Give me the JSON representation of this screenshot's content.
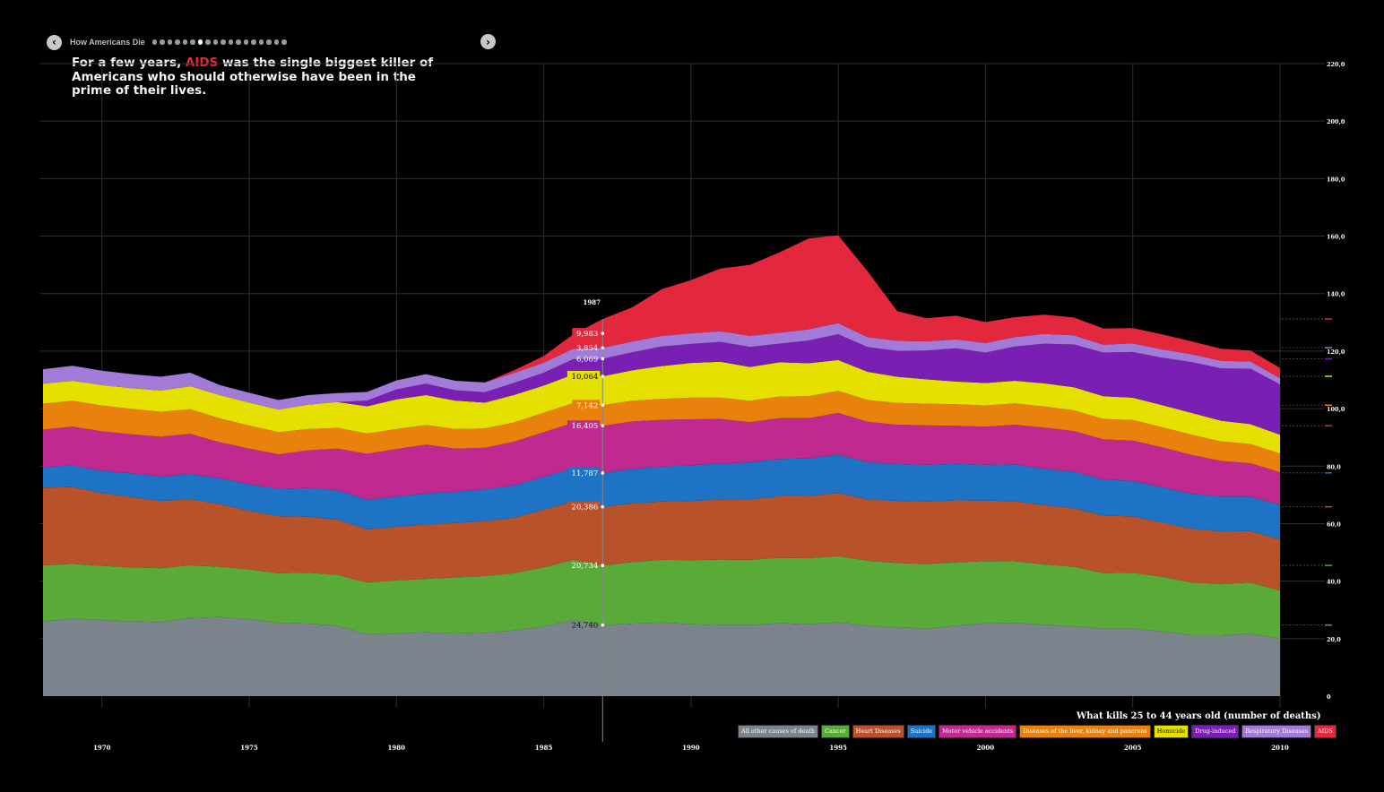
{
  "nav": {
    "title": "How Americans Die",
    "dot_count": 18,
    "active_dot": 6,
    "prev_icon": "chevron-left-icon",
    "next_icon": "chevron-right-icon"
  },
  "headline": {
    "pre": "For a few years, ",
    "highlight": "AIDS",
    "post": " was the single biggest killer of Americans who should otherwise have been in the prime of their lives.",
    "highlight_color": "#e8263a"
  },
  "legend_title": "What kills 25 to 44 years old (number of deaths)",
  "chart_data": {
    "type": "area",
    "stacked": true,
    "title": "What kills 25 to 44 years old (number of deaths)",
    "x": [
      1968,
      1969,
      1970,
      1971,
      1972,
      1973,
      1974,
      1975,
      1976,
      1977,
      1978,
      1979,
      1980,
      1981,
      1982,
      1983,
      1984,
      1985,
      1986,
      1987,
      1988,
      1989,
      1990,
      1991,
      1992,
      1993,
      1994,
      1995,
      1996,
      1997,
      1998,
      1999,
      2000,
      2001,
      2002,
      2003,
      2004,
      2005,
      2006,
      2007,
      2008,
      2009,
      2010
    ],
    "xticks": [
      1970,
      1975,
      1980,
      1985,
      1990,
      1995,
      2000,
      2005,
      2010
    ],
    "ylim": [
      0,
      220000
    ],
    "yticks": [
      0,
      20000,
      40000,
      60000,
      80000,
      100000,
      120000,
      140000,
      160000,
      180000,
      200000,
      220000
    ],
    "ytick_labels": [
      "0",
      "20,0",
      "40,0",
      "60,0",
      "80,0",
      "100,0",
      "120,0",
      "140,0",
      "160,0",
      "180,0",
      "200,0",
      "220,0"
    ],
    "series": [
      {
        "name": "All other causes of death",
        "color": "#7b838c",
        "values": [
          26000,
          27000,
          26500,
          26000,
          25800,
          27200,
          27500,
          26800,
          25500,
          25200,
          24500,
          21500,
          21800,
          22200,
          21800,
          22000,
          22800,
          24300,
          26500,
          24740,
          25200,
          25600,
          25000,
          24700,
          24700,
          25400,
          25000,
          25700,
          24500,
          23900,
          23500,
          24500,
          25400,
          25500,
          24800,
          24300,
          23500,
          23500,
          22500,
          21200,
          21200,
          21700,
          20000
        ]
      },
      {
        "name": "Cancer",
        "color": "#5aaa3a",
        "values": [
          19500,
          19000,
          18800,
          18800,
          18700,
          18300,
          17500,
          17300,
          17300,
          17700,
          17700,
          18000,
          18500,
          18600,
          19500,
          19800,
          20000,
          20500,
          20900,
          20734,
          21400,
          21800,
          22300,
          22800,
          22700,
          22700,
          23000,
          23000,
          22600,
          22400,
          22500,
          22000,
          21600,
          21400,
          21000,
          20700,
          19300,
          19400,
          19000,
          18300,
          17800,
          17800,
          16700
        ]
      },
      {
        "name": "Heart Diseases",
        "color": "#b8522a",
        "values": [
          27000,
          26700,
          25300,
          24400,
          23400,
          23000,
          21800,
          20300,
          19800,
          19500,
          19200,
          18500,
          18600,
          18900,
          18900,
          19100,
          19200,
          20100,
          20200,
          20386,
          20400,
          20300,
          20600,
          20800,
          21000,
          21400,
          21500,
          22000,
          21300,
          21600,
          21700,
          21600,
          21000,
          20900,
          20600,
          20400,
          20000,
          19600,
          18900,
          18700,
          18300,
          17900,
          17800
        ]
      },
      {
        "name": "Suicide",
        "color": "#1f73c4",
        "values": [
          7200,
          7500,
          7800,
          8300,
          8500,
          8700,
          9000,
          9300,
          9500,
          10000,
          10200,
          10300,
          10500,
          10800,
          10900,
          11000,
          11300,
          11400,
          11600,
          11787,
          12000,
          12100,
          12400,
          12600,
          12900,
          13000,
          13200,
          13300,
          13000,
          12800,
          12800,
          12700,
          12500,
          12800,
          12700,
          12700,
          12500,
          12400,
          12300,
          12200,
          12100,
          12000,
          12100
        ]
      },
      {
        "name": "Motor vehicle accidents",
        "color": "#c0298f",
        "values": [
          13000,
          13500,
          13700,
          13600,
          13800,
          14000,
          12500,
          12400,
          12000,
          13100,
          14500,
          16000,
          16500,
          17000,
          15000,
          14500,
          15200,
          15500,
          15800,
          16405,
          16500,
          16300,
          16000,
          15500,
          14000,
          14200,
          14000,
          14500,
          14000,
          13700,
          13700,
          13200,
          13200,
          13800,
          14300,
          14100,
          14000,
          14000,
          13800,
          13500,
          12400,
          11600,
          11300
        ]
      },
      {
        "name": "Diseases of the liver, kidney and pancreas",
        "color": "#e8820c",
        "values": [
          9000,
          9000,
          9000,
          8800,
          8700,
          8600,
          8300,
          8000,
          7700,
          7400,
          7200,
          7000,
          7000,
          6800,
          6800,
          6700,
          6700,
          6800,
          6900,
          7142,
          7200,
          7300,
          7500,
          7400,
          7400,
          7500,
          7600,
          7700,
          7600,
          7600,
          7500,
          7500,
          7400,
          7400,
          7300,
          7200,
          7100,
          7100,
          7000,
          7000,
          6800,
          6700,
          6500
        ]
      },
      {
        "name": "Homicide",
        "color": "#e6e000",
        "values": [
          7000,
          7000,
          7100,
          7200,
          7400,
          8000,
          8100,
          8000,
          7900,
          8500,
          9000,
          9500,
          10300,
          10400,
          9900,
          9000,
          9600,
          9400,
          10000,
          10064,
          10600,
          11400,
          12100,
          12500,
          11800,
          11900,
          11500,
          10700,
          9800,
          9100,
          8500,
          7900,
          7800,
          7900,
          8100,
          8000,
          7900,
          7800,
          7700,
          7600,
          7200,
          6900,
          6500
        ]
      },
      {
        "name": "Drug-induced",
        "color": "#7a1fb3",
        "values": [
          0,
          0,
          0,
          0,
          0,
          0,
          0,
          0,
          0,
          0,
          0,
          2000,
          3500,
          4000,
          3600,
          3600,
          4200,
          4500,
          5300,
          6069,
          6300,
          6800,
          6600,
          6900,
          7000,
          6500,
          7900,
          9000,
          8600,
          9000,
          10000,
          11600,
          10600,
          11900,
          13800,
          14900,
          15200,
          15900,
          16500,
          17700,
          18200,
          19300,
          17500
        ]
      },
      {
        "name": "Respiratory Diseases",
        "color": "#a27ad8",
        "values": [
          5000,
          5200,
          5000,
          4900,
          4800,
          4700,
          3500,
          3400,
          3300,
          3300,
          3100,
          3000,
          3100,
          3300,
          3300,
          3400,
          3400,
          3500,
          3600,
          3854,
          3700,
          3700,
          3700,
          3700,
          3800,
          3800,
          3900,
          3800,
          3500,
          3500,
          3200,
          3100,
          3300,
          3300,
          3400,
          3200,
          2700,
          3000,
          2900,
          2700,
          2600,
          2500,
          2200
        ]
      },
      {
        "name": "AIDS",
        "color": "#e3283e",
        "values": [
          0,
          0,
          0,
          0,
          0,
          0,
          0,
          0,
          0,
          0,
          0,
          0,
          0,
          0,
          0,
          0,
          1000,
          2300,
          5000,
          9983,
          11900,
          16200,
          18500,
          21800,
          24700,
          27900,
          31600,
          30600,
          22800,
          10300,
          8000,
          8200,
          7300,
          6900,
          6700,
          6200,
          5700,
          5300,
          5200,
          4500,
          4200,
          3800,
          3500
        ]
      }
    ],
    "hover": {
      "year": "1987",
      "labels": [
        "24,740",
        "20,734",
        "20,386",
        "11,787",
        "16,405",
        "7,142",
        "10,064",
        "6,069",
        "3,854",
        "9,983"
      ]
    }
  }
}
